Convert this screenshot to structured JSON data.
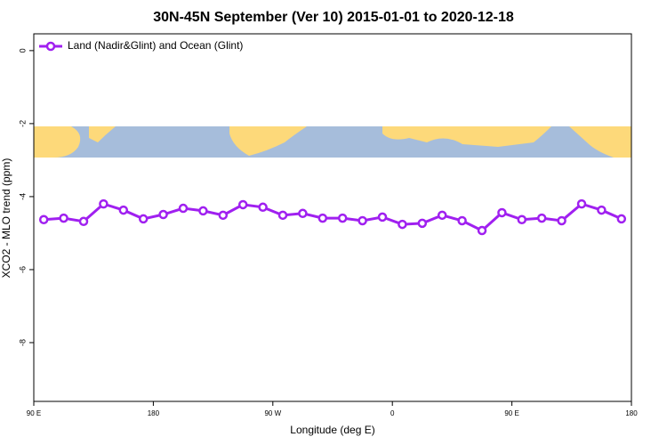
{
  "chart_data": {
    "type": "line",
    "title": "30N-45N September (Ver 10)   2015-01-01 to 2020-12-18",
    "x_label": "Longitude (deg E)",
    "y_label": "XCO2 - MLO trend (ppm)",
    "x": [
      97.5,
      112.5,
      127.5,
      142.5,
      157.5,
      172.5,
      187.5,
      202.5,
      217.5,
      232.5,
      247.5,
      262.5,
      277.5,
      292.5,
      307.5,
      322.5,
      337.5,
      352.5,
      367.5,
      382.5,
      397.5,
      412.5,
      427.5,
      442.5,
      457.5,
      472.5,
      487.5,
      502.5,
      517.5,
      532.5
    ],
    "series": [
      {
        "name": "Land (Nadir&Glint) and Ocean (Glint)",
        "color": "#a020f0",
        "values": [
          -4.63,
          -4.59,
          -4.68,
          -4.2,
          -4.37,
          -4.61,
          -4.49,
          -4.32,
          -4.39,
          -4.51,
          -4.22,
          -4.29,
          -4.51,
          -4.46,
          -4.59,
          -4.59,
          -4.66,
          -4.56,
          -4.76,
          -4.73,
          -4.51,
          -4.66,
          -4.93,
          -4.44,
          -4.63,
          -4.59,
          -4.66,
          -4.2,
          -4.37,
          -4.61
        ]
      }
    ],
    "xlim": [
      90,
      540
    ],
    "xticks": [
      {
        "value": 90,
        "label": "90 E"
      },
      {
        "value": 180,
        "label": "180"
      },
      {
        "value": 270,
        "label": "90 W"
      },
      {
        "value": 360,
        "label": "0"
      },
      {
        "value": 450,
        "label": "90 E"
      },
      {
        "value": 540,
        "label": "180"
      }
    ],
    "ylim": [
      -9.61,
      0.46
    ],
    "yticks": [
      0,
      -2,
      -4,
      -6,
      -8
    ],
    "legend": "top-left",
    "grid": false
  }
}
